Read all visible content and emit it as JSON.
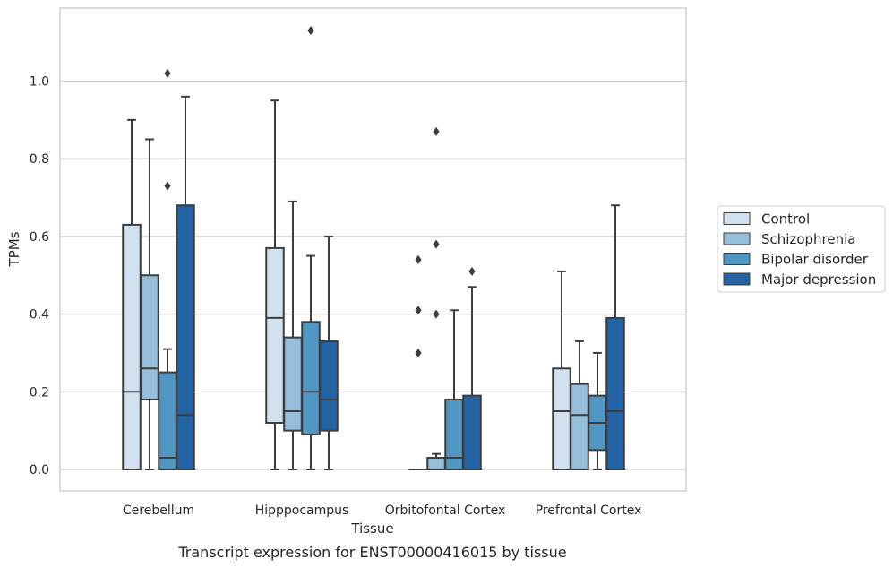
{
  "chart_data": {
    "type": "box",
    "title": "",
    "caption": "Transcript expression for ENST00000416015 by tissue",
    "xlabel": "Tissue",
    "ylabel": "TPMs",
    "categories": [
      "Cerebellum",
      "Hipppocampus",
      "Orbitofontal Cortex",
      "Prefrontal Cortex"
    ],
    "ylim": [
      -0.055,
      1.19
    ],
    "yticks": [
      0.0,
      0.2,
      0.4,
      0.6,
      0.8,
      1.0
    ],
    "ytick_labels": [
      "0.0",
      "0.2",
      "0.4",
      "0.6",
      "0.8",
      "1.0"
    ],
    "grid": "horizontal",
    "legend_position": "right",
    "series": [
      {
        "name": "Control",
        "color": "#d1e1f0",
        "boxes": [
          {
            "whisker_low": 0.0,
            "q1": 0.0,
            "median": 0.2,
            "q3": 0.63,
            "whisker_high": 0.9,
            "outliers": []
          },
          {
            "whisker_low": 0.0,
            "q1": 0.12,
            "median": 0.39,
            "q3": 0.57,
            "whisker_high": 0.95,
            "outliers": []
          },
          {
            "whisker_low": 0.0,
            "q1": 0.0,
            "median": 0.0,
            "q3": 0.0,
            "whisker_high": 0.0,
            "outliers": [
              0.54,
              0.41,
              0.3
            ]
          },
          {
            "whisker_low": 0.0,
            "q1": 0.0,
            "median": 0.15,
            "q3": 0.26,
            "whisker_high": 0.51,
            "outliers": []
          }
        ]
      },
      {
        "name": "Schizophrenia",
        "color": "#94bed9",
        "boxes": [
          {
            "whisker_low": 0.0,
            "q1": 0.18,
            "median": 0.26,
            "q3": 0.5,
            "whisker_high": 0.85,
            "outliers": []
          },
          {
            "whisker_low": 0.0,
            "q1": 0.1,
            "median": 0.15,
            "q3": 0.34,
            "whisker_high": 0.69,
            "outliers": []
          },
          {
            "whisker_low": 0.0,
            "q1": 0.0,
            "median": 0.03,
            "q3": 0.03,
            "whisker_high": 0.04,
            "outliers": [
              0.87,
              0.58,
              0.4
            ]
          },
          {
            "whisker_low": 0.0,
            "q1": 0.0,
            "median": 0.14,
            "q3": 0.22,
            "whisker_high": 0.33,
            "outliers": []
          }
        ]
      },
      {
        "name": "Bipolar disorder",
        "color": "#5096c2",
        "boxes": [
          {
            "whisker_low": 0.0,
            "q1": 0.0,
            "median": 0.03,
            "q3": 0.25,
            "whisker_high": 0.31,
            "outliers": [
              1.02,
              0.73
            ]
          },
          {
            "whisker_low": 0.0,
            "q1": 0.09,
            "median": 0.2,
            "q3": 0.38,
            "whisker_high": 0.55,
            "outliers": [
              1.13
            ]
          },
          {
            "whisker_low": 0.0,
            "q1": 0.0,
            "median": 0.03,
            "q3": 0.18,
            "whisker_high": 0.41,
            "outliers": []
          },
          {
            "whisker_low": 0.0,
            "q1": 0.05,
            "median": 0.12,
            "q3": 0.19,
            "whisker_high": 0.3,
            "outliers": []
          }
        ]
      },
      {
        "name": "Major depression",
        "color": "#2463a3",
        "boxes": [
          {
            "whisker_low": 0.0,
            "q1": 0.0,
            "median": 0.14,
            "q3": 0.68,
            "whisker_high": 0.96,
            "outliers": []
          },
          {
            "whisker_low": 0.0,
            "q1": 0.1,
            "median": 0.18,
            "q3": 0.33,
            "whisker_high": 0.6,
            "outliers": []
          },
          {
            "whisker_low": 0.0,
            "q1": 0.0,
            "median": 0.0,
            "q3": 0.19,
            "whisker_high": 0.47,
            "outliers": [
              0.51
            ]
          },
          {
            "whisker_low": 0.0,
            "q1": 0.0,
            "median": 0.15,
            "q3": 0.39,
            "whisker_high": 0.68,
            "outliers": []
          }
        ]
      }
    ]
  }
}
